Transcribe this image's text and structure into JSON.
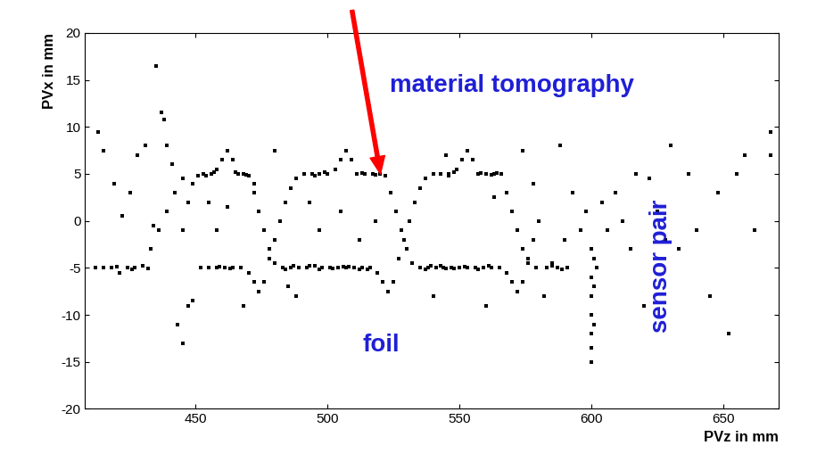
{
  "chart_data": {
    "type": "scatter",
    "x_label": "PVz in mm",
    "y_label": "PVx in mm",
    "annotations": [
      "material tomography",
      "foil",
      "sensor pair"
    ],
    "color": "#000000",
    "marker": "square",
    "xlim": [
      408,
      671
    ],
    "xticks": [
      450,
      500,
      550,
      600,
      650
    ],
    "ylim": [
      -20,
      20
    ],
    "yticks": [
      -20,
      -15,
      -10,
      -5,
      0,
      5,
      10,
      15,
      20
    ],
    "grid": false,
    "x": [
      445,
      447,
      449,
      451,
      453,
      456,
      458,
      460,
      462,
      464,
      466,
      468,
      470,
      472,
      474,
      476,
      478,
      480,
      483,
      486,
      489,
      492,
      495,
      498,
      501,
      504,
      507,
      510,
      513,
      516,
      519,
      521,
      523,
      525,
      527,
      529,
      531,
      533,
      535,
      537,
      540,
      543,
      546,
      549,
      551,
      553,
      555,
      557,
      560,
      563,
      566,
      568,
      570,
      572,
      574,
      576,
      579,
      583,
      587,
      591,
      412,
      415,
      418,
      421,
      424,
      427,
      430,
      433,
      436,
      439,
      442,
      445,
      452,
      455,
      458,
      461,
      464,
      467,
      470,
      472,
      474,
      476,
      478,
      480,
      482,
      484,
      486,
      488,
      491,
      494,
      497,
      500,
      503,
      505,
      507,
      509,
      511,
      514,
      517,
      520,
      522,
      524,
      526,
      528,
      530,
      532,
      535,
      538,
      541,
      544,
      547,
      550,
      553,
      556,
      559,
      562,
      565,
      568,
      570,
      572,
      574,
      576,
      578,
      580,
      454,
      457,
      465,
      469,
      493,
      497,
      506,
      512,
      495,
      499,
      513,
      518,
      537,
      543,
      548,
      546,
      548,
      558,
      562,
      561,
      557,
      420,
      426,
      432,
      484,
      487,
      502,
      508,
      515,
      539,
      545,
      552,
      564,
      585,
      589,
      459,
      463,
      413,
      415,
      419,
      422,
      425,
      428,
      431,
      434,
      435,
      437,
      438,
      439,
      441,
      443,
      445,
      447,
      449,
      455,
      458,
      462,
      468,
      472,
      480,
      485,
      488,
      493,
      497,
      505,
      512,
      518,
      540,
      545,
      560,
      563,
      574,
      578,
      582,
      585,
      588,
      590,
      593,
      596,
      598,
      600,
      600,
      600,
      600,
      600,
      600,
      600,
      601,
      601,
      601,
      602,
      604,
      606,
      609,
      612,
      615,
      617,
      620,
      622,
      625,
      628,
      630,
      633,
      637,
      640,
      645,
      648,
      652,
      655,
      658,
      662,
      668,
      668
    ],
    "values": [
      -1,
      2,
      4,
      4.8,
      5,
      5,
      5.5,
      6.5,
      7.5,
      6.5,
      5,
      5,
      4.8,
      3,
      1,
      -1,
      -3,
      -4.5,
      -5,
      -5,
      -5,
      -5,
      -4.8,
      -5,
      -5,
      -5,
      -5,
      -5,
      -5,
      -5,
      -5.5,
      -6.5,
      -7.5,
      -6.5,
      -4,
      -2,
      0,
      2,
      3.5,
      4.5,
      5,
      5,
      5,
      5.5,
      6.5,
      7.5,
      6.5,
      5,
      5,
      5,
      5,
      3,
      1,
      -1,
      -3,
      -4.5,
      -5,
      -5,
      -5,
      -5,
      -5,
      -5,
      -5,
      -5.5,
      -5,
      -5,
      -4.8,
      -3,
      -1,
      1,
      3,
      4.5,
      -5,
      -5,
      -5,
      -5,
      -5,
      -5,
      -5.5,
      -6.5,
      -7.5,
      -6.5,
      -4,
      -2,
      0,
      2,
      3.5,
      4.5,
      5,
      5,
      5,
      5,
      5.5,
      6.5,
      7.5,
      6.5,
      5,
      5,
      5,
      5,
      4.8,
      3,
      1,
      -1,
      -3,
      -4.5,
      -5,
      -5,
      -5,
      -5,
      -5,
      -5,
      -5,
      -5,
      -5,
      -5,
      -5,
      -5.5,
      -6.5,
      -7.5,
      -6.5,
      -4,
      -2,
      0,
      4.8,
      5.2,
      5.2,
      4.9,
      -4.8,
      -5.2,
      -4.9,
      -5.2,
      4.8,
      5.2,
      5.1,
      4.9,
      -5.2,
      -4.8,
      -5.1,
      4.8,
      5.2,
      5.1,
      4.9,
      -4.8,
      -5.2,
      -4.9,
      -5.2,
      -5.1,
      -5.2,
      -4.8,
      -5.1,
      -4.9,
      -5.2,
      -4.8,
      -5.1,
      -4.9,
      5.1,
      -4.8,
      -5.2,
      -4.9,
      -5.1,
      9.5,
      7.5,
      4,
      0.5,
      3,
      7,
      8,
      -0.5,
      16.5,
      11.5,
      10.8,
      8,
      6,
      -11,
      -13,
      -9,
      -8.5,
      2,
      -1,
      1.5,
      -9,
      4,
      7.5,
      -7,
      -8,
      2,
      -1,
      1,
      -2,
      0,
      -8,
      7,
      -9,
      2.5,
      7.5,
      4,
      -8,
      -4.5,
      8,
      -2,
      3,
      -1,
      1,
      -3,
      -6,
      -8,
      -10,
      -12,
      -13.5,
      -15,
      -4,
      -7,
      -11,
      -5,
      2,
      -1,
      3,
      0,
      -3,
      5,
      -9,
      4.5,
      1,
      -2,
      8,
      -3,
      5,
      -1,
      -8,
      3,
      -12,
      5,
      7,
      -1,
      7,
      9.5
    ]
  }
}
